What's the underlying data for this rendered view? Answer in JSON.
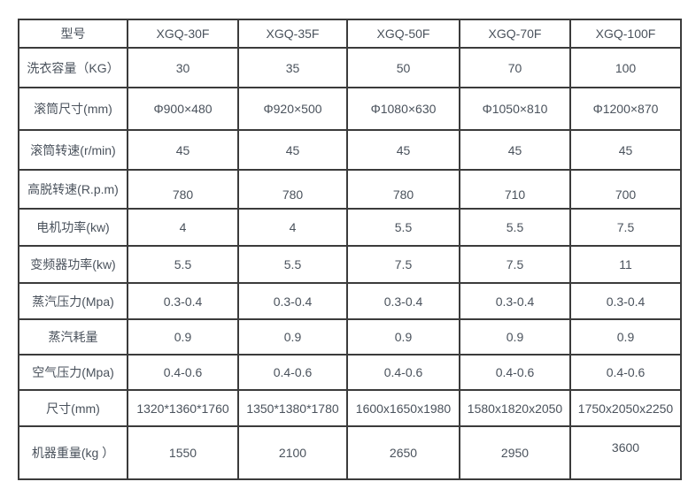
{
  "table": {
    "header": {
      "label": "型号",
      "models": [
        "XGQ-30F",
        "XGQ-35F",
        "XGQ-50F",
        "XGQ-70F",
        "XGQ-100F"
      ]
    },
    "rows": [
      {
        "label": "洗衣容量（KG）",
        "values": [
          "30",
          "35",
          "50",
          "70",
          "100"
        ]
      },
      {
        "label": "滚筒尺寸(mm)",
        "values": [
          "Φ900×480",
          "Φ920×500",
          "Φ1080×630",
          "Φ1050×810",
          "Φ1200×870"
        ]
      },
      {
        "label": "滚筒转速(r/min)",
        "values": [
          "45",
          "45",
          "45",
          "45",
          "45"
        ]
      },
      {
        "label": "高脱转速(R.p.m)",
        "values": [
          "780",
          "780",
          "780",
          "710",
          "700"
        ]
      },
      {
        "label": "电机功率(kw)",
        "values": [
          "4",
          "4",
          "5.5",
          "5.5",
          "7.5"
        ]
      },
      {
        "label": "变频器功率(kw)",
        "values": [
          "5.5",
          "5.5",
          "7.5",
          "7.5",
          "11"
        ]
      },
      {
        "label": "蒸汽压力(Mpa)",
        "values": [
          "0.3-0.4",
          "0.3-0.4",
          "0.3-0.4",
          "0.3-0.4",
          "0.3-0.4"
        ]
      },
      {
        "label": "蒸汽耗量",
        "values": [
          "0.9",
          "0.9",
          "0.9",
          "0.9",
          "0.9"
        ]
      },
      {
        "label": "空气压力(Mpa)",
        "values": [
          "0.4-0.6",
          "0.4-0.6",
          "0.4-0.6",
          "0.4-0.6",
          "0.4-0.6"
        ]
      },
      {
        "label": "尺寸(mm)",
        "values": [
          "1320*1360*1760",
          "1350*1380*1780",
          "1600x1650x1980",
          "1580x1820x2050",
          "1750x2050x2250"
        ]
      },
      {
        "label": "机器重量(kg ）",
        "values": [
          "1550",
          "2100",
          "2650",
          "2950",
          "3600"
        ]
      }
    ],
    "colors": {
      "border": "#3b3b3b",
      "text": "#4a525c",
      "background": "#ffffff"
    }
  }
}
